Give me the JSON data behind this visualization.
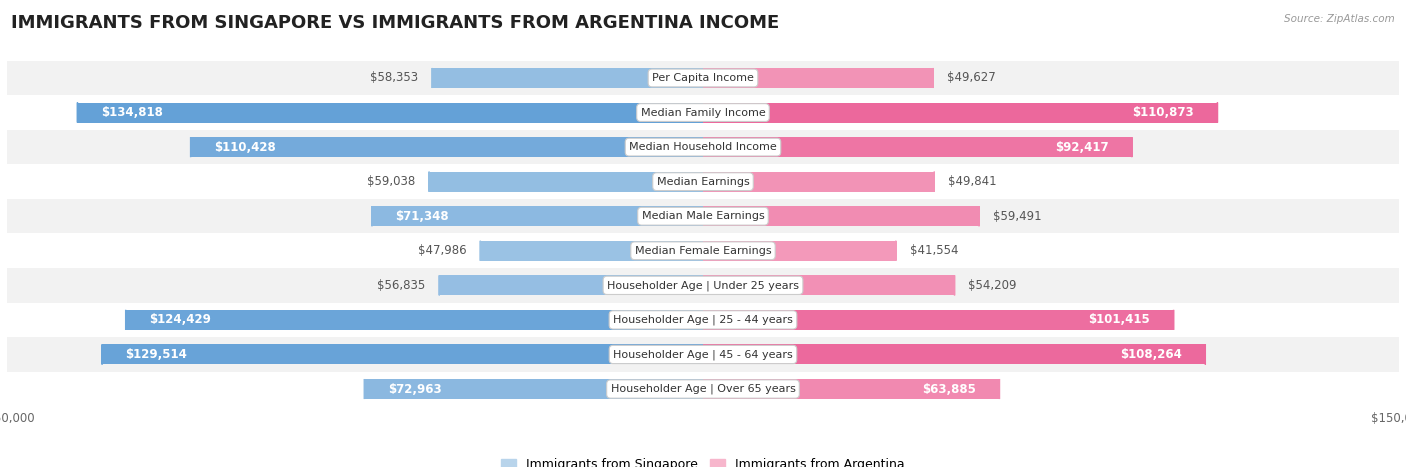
{
  "title": "IMMIGRANTS FROM SINGAPORE VS IMMIGRANTS FROM ARGENTINA INCOME",
  "source": "Source: ZipAtlas.com",
  "categories": [
    "Per Capita Income",
    "Median Family Income",
    "Median Household Income",
    "Median Earnings",
    "Median Male Earnings",
    "Median Female Earnings",
    "Householder Age | Under 25 years",
    "Householder Age | 25 - 44 years",
    "Householder Age | 45 - 64 years",
    "Householder Age | Over 65 years"
  ],
  "singapore_values": [
    58353,
    134818,
    110428,
    59038,
    71348,
    47986,
    56835,
    124429,
    129514,
    72963
  ],
  "argentina_values": [
    49627,
    110873,
    92417,
    49841,
    59491,
    41554,
    54209,
    101415,
    108264,
    63885
  ],
  "singapore_labels": [
    "$58,353",
    "$134,818",
    "$110,428",
    "$59,038",
    "$71,348",
    "$47,986",
    "$56,835",
    "$124,429",
    "$129,514",
    "$72,963"
  ],
  "argentina_labels": [
    "$49,627",
    "$110,873",
    "$92,417",
    "$49,841",
    "$59,491",
    "$41,554",
    "$54,209",
    "$101,415",
    "$108,264",
    "$63,885"
  ],
  "singapore_color_light": "#b8d4eb",
  "singapore_color_dark": "#5b9bd5",
  "argentina_color_light": "#f7b6cc",
  "argentina_color_dark": "#e84c8b",
  "max_value": 150000,
  "bar_height": 0.58,
  "row_bg_even": "#f2f2f2",
  "row_bg_odd": "#ffffff",
  "legend_singapore": "Immigrants from Singapore",
  "legend_argentina": "Immigrants from Argentina",
  "title_fontsize": 13,
  "label_fontsize": 8.5,
  "category_fontsize": 8,
  "axis_fontsize": 8.5,
  "inside_threshold": 60000
}
